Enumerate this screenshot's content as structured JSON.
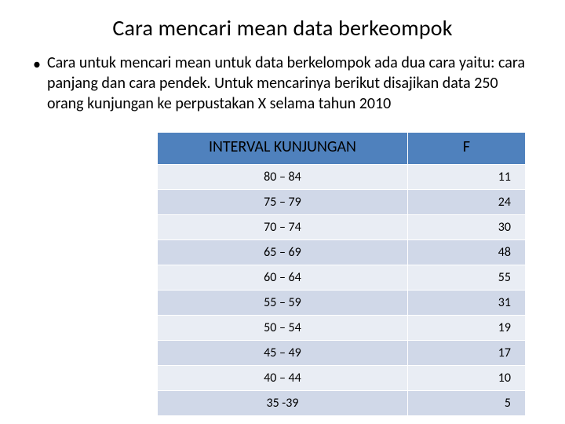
{
  "title": "Cara mencari mean data berkeompok",
  "bullet_glyph": "•",
  "paragraph": "Cara untuk mencari mean untuk data berkelompok ada dua cara yaitu: cara panjang dan cara pendek. Untuk mencarinya berikut disajikan data 250 orang kunjungan ke perpustakan X selama tahun 2010",
  "table": {
    "header_bg": "#4f81bd",
    "row_alt_bg_a": "#e9edf4",
    "row_alt_bg_b": "#d0d8e8",
    "border_color": "#ffffff",
    "header_fontsize": 20,
    "cell_fontsize": 16,
    "columns": [
      "INTERVAL KUNJUNGAN",
      "F"
    ],
    "rows": [
      [
        "80 – 84",
        "11"
      ],
      [
        "75 – 79",
        "24"
      ],
      [
        "70 – 74",
        "30"
      ],
      [
        "65 – 69",
        "48"
      ],
      [
        "60 – 64",
        "55"
      ],
      [
        "55 – 59",
        "31"
      ],
      [
        "50 – 54",
        "19"
      ],
      [
        "45 – 49",
        "17"
      ],
      [
        "40 – 44",
        "10"
      ],
      [
        "35 -39",
        "5"
      ]
    ]
  },
  "colors": {
    "background": "#ffffff",
    "text": "#000000"
  },
  "fonts": {
    "title_size_pt": 28,
    "body_size_pt": 20
  }
}
